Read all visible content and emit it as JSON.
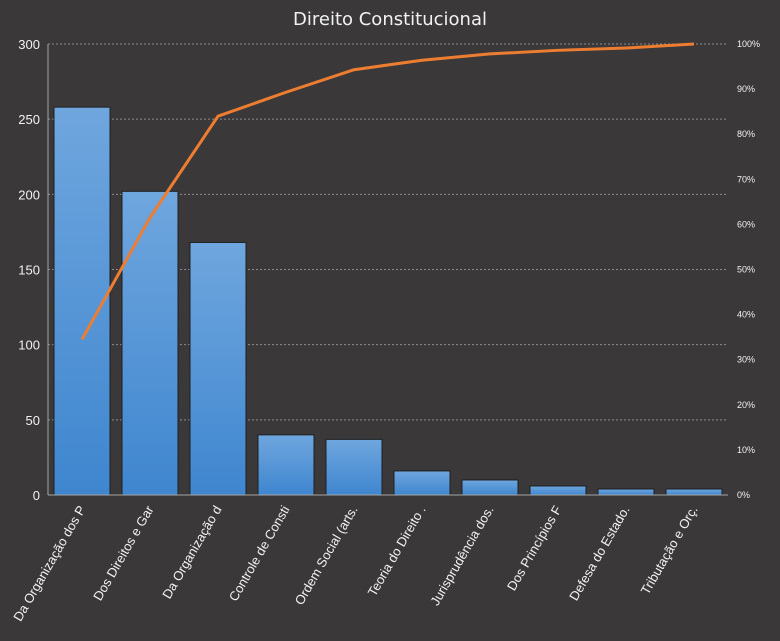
{
  "chart_data": {
    "type": "bar",
    "title": "Direito Constitucional",
    "categories": [
      "Da Organização dos P",
      "Dos Direitos e Gar",
      "Da Organização d",
      "Controle de Consti",
      "Ordem Social (arts.",
      "Teoria do Direito .",
      "Jurisprudência dos.",
      "Dos Princípios F",
      "Defesa do Estado.",
      "Tributação e Orç."
    ],
    "series": [
      {
        "type": "bar",
        "values": [
          258,
          202,
          168,
          40,
          37,
          16,
          10,
          6,
          4,
          4
        ]
      },
      {
        "type": "line",
        "axis": "secondary",
        "values": [
          0.345,
          0.615,
          0.84,
          0.893,
          0.943,
          0.964,
          0.978,
          0.986,
          0.991,
          1.0
        ]
      }
    ],
    "ylim": [
      0,
      300
    ],
    "yticks": [
      "0",
      "50",
      "100",
      "150",
      "200",
      "250",
      "300"
    ],
    "y2lim": [
      0,
      1
    ],
    "y2ticks": [
      "0%",
      "10%",
      "20%",
      "30%",
      "40%",
      "50%",
      "60%",
      "70%",
      "80%",
      "90%",
      "100%"
    ],
    "grid": true,
    "legend": "none",
    "colors": {
      "background": "#3a3838",
      "bar_top": "#6fa6de",
      "bar_bottom": "#3f86cf",
      "bar_edge": "#1f1f1f",
      "line": "#ed7d31",
      "grid": "#8c8c8c",
      "text": "#f2f2f2"
    }
  }
}
